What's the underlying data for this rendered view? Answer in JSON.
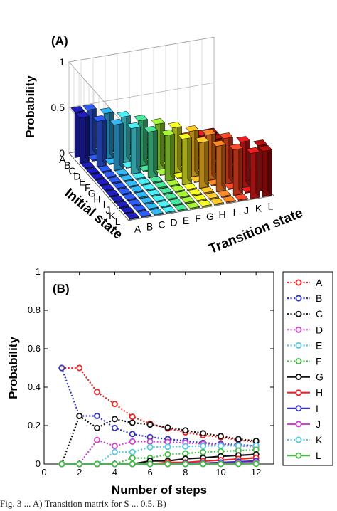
{
  "caption": "Fig. 3 ... A) Transition matrix for S ... 0.5. B)",
  "chart_data": [
    {
      "type": "bar3d",
      "panel_label": "(A)",
      "zlabel": "Probability",
      "xlabel": "Transition state",
      "ylabel": "Initial state",
      "zticks": [
        "0",
        "0.5",
        "1"
      ],
      "zlim": [
        0,
        1
      ],
      "states": [
        "A",
        "B",
        "C",
        "D",
        "E",
        "F",
        "G",
        "H",
        "I",
        "J",
        "K",
        "L"
      ],
      "colors": [
        "#1a1aa8",
        "#2850d8",
        "#2aa0d8",
        "#40d0d8",
        "#40c888",
        "#90d830",
        "#d8e020",
        "#f0b020",
        "#f07820",
        "#e84020",
        "#d01818",
        "#a00c0c"
      ],
      "matrix": [
        [
          0.5,
          0.5,
          0,
          0,
          0,
          0,
          0,
          0,
          0,
          0,
          0,
          0
        ],
        [
          0.5,
          0,
          0.5,
          0,
          0,
          0,
          0,
          0,
          0,
          0,
          0,
          0
        ],
        [
          0,
          0.5,
          0,
          0.5,
          0,
          0,
          0,
          0,
          0,
          0,
          0,
          0
        ],
        [
          0,
          0,
          0.5,
          0,
          0.5,
          0,
          0,
          0,
          0,
          0,
          0,
          0
        ],
        [
          0,
          0,
          0,
          0.5,
          0,
          0.5,
          0,
          0,
          0,
          0,
          0,
          0
        ],
        [
          0,
          0,
          0,
          0,
          0.5,
          0,
          0.5,
          0,
          0,
          0,
          0,
          0
        ],
        [
          0,
          0,
          0,
          0,
          0,
          0.5,
          0,
          0.5,
          0,
          0,
          0,
          0
        ],
        [
          0,
          0,
          0,
          0,
          0,
          0,
          0.5,
          0,
          0.5,
          0,
          0,
          0
        ],
        [
          0,
          0,
          0,
          0,
          0,
          0,
          0,
          0.5,
          0,
          0.5,
          0,
          0
        ],
        [
          0,
          0,
          0,
          0,
          0,
          0,
          0,
          0,
          0.5,
          0,
          0.5,
          0
        ],
        [
          0,
          0,
          0,
          0,
          0,
          0,
          0,
          0,
          0,
          0.5,
          0,
          0.5
        ],
        [
          0,
          0,
          0,
          0,
          0,
          0,
          0,
          0,
          0,
          0,
          0.5,
          0.5
        ]
      ]
    },
    {
      "type": "line",
      "panel_label": "(B)",
      "xlabel": "Number of steps",
      "ylabel": "Probability",
      "xlim": [
        0,
        13
      ],
      "ylim": [
        0,
        1
      ],
      "xticks": [
        0,
        2,
        4,
        6,
        8,
        10,
        12
      ],
      "yticks": [
        0,
        0.2,
        0.4,
        0.6,
        0.8,
        1
      ],
      "ytick_labels": [
        "0",
        "0.2",
        "0.4",
        "0.6",
        "0.8",
        "1"
      ],
      "legend_position": "right",
      "x": [
        1,
        2,
        3,
        4,
        5,
        6,
        7,
        8,
        9,
        10,
        11,
        12
      ],
      "series": [
        {
          "name": "A",
          "color": "#ee2222",
          "style": "dotted",
          "values": [
            0.5,
            0.5,
            0.375,
            0.3125,
            0.246,
            0.21,
            0.185,
            0.165,
            0.15,
            0.14,
            0.125,
            0.115
          ]
        },
        {
          "name": "B",
          "color": "#3333bb",
          "style": "dotted",
          "values": [
            0.5,
            0.25,
            0.25,
            0.1875,
            0.156,
            0.14,
            0.13,
            0.12,
            0.11,
            0.105,
            0.1,
            0.095
          ]
        },
        {
          "name": "C",
          "color": "#111111",
          "style": "dotted",
          "values": [
            0,
            0.25,
            0.1875,
            0.234,
            0.215,
            0.205,
            0.19,
            0.175,
            0.16,
            0.145,
            0.13,
            0.12
          ]
        },
        {
          "name": "D",
          "color": "#cc44cc",
          "style": "dotted",
          "values": [
            0,
            0,
            0.125,
            0.094,
            0.117,
            0.117,
            0.115,
            0.11,
            0.105,
            0.1,
            0.095,
            0.09
          ]
        },
        {
          "name": "E",
          "color": "#55c8e0",
          "style": "dotted",
          "values": [
            0,
            0,
            0,
            0.0625,
            0.0625,
            0.088,
            0.09,
            0.092,
            0.094,
            0.095,
            0.096,
            0.096
          ]
        },
        {
          "name": "F",
          "color": "#44bb44",
          "style": "dotted",
          "values": [
            0,
            0,
            0,
            0,
            0.031,
            0.031,
            0.05,
            0.055,
            0.062,
            0.066,
            0.07,
            0.074
          ]
        },
        {
          "name": "G",
          "color": "#111111",
          "style": "solid",
          "values": [
            0,
            0,
            0,
            0,
            0,
            0.016,
            0.016,
            0.027,
            0.032,
            0.04,
            0.045,
            0.05
          ]
        },
        {
          "name": "H",
          "color": "#ee2222",
          "style": "solid",
          "values": [
            0,
            0,
            0,
            0,
            0,
            0,
            0.008,
            0.008,
            0.015,
            0.02,
            0.026,
            0.032
          ]
        },
        {
          "name": "I",
          "color": "#3333bb",
          "style": "solid",
          "values": [
            0,
            0,
            0,
            0,
            0,
            0,
            0,
            0.004,
            0.004,
            0.008,
            0.012,
            0.016
          ]
        },
        {
          "name": "J",
          "color": "#cc44cc",
          "style": "solid",
          "values": [
            0,
            0,
            0,
            0,
            0,
            0,
            0,
            0,
            0.002,
            0.002,
            0.005,
            0.008
          ]
        },
        {
          "name": "K",
          "color": "#55c8e0",
          "style": "dotted",
          "values": [
            0,
            0,
            0,
            0,
            0,
            0,
            0,
            0,
            0,
            0.001,
            0.001,
            0.003
          ]
        },
        {
          "name": "L",
          "color": "#44bb44",
          "style": "solid",
          "values": [
            0,
            0,
            0,
            0,
            0,
            0,
            0,
            0,
            0,
            0,
            0.0005,
            0.001
          ]
        }
      ]
    }
  ]
}
